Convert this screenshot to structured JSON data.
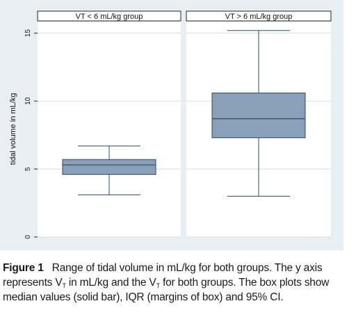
{
  "chart_data": {
    "type": "box",
    "ylabel": "tidal volume in mL/kg",
    "ylim": [
      0,
      15.8
    ],
    "yticks": [
      0,
      5,
      10,
      15
    ],
    "grid": true,
    "colors": {
      "box_fill": "#8aa0b8",
      "box_stroke": "#2f4a63",
      "grid": "#d8dde2",
      "panel_bg": "#e9eef3"
    },
    "panels": [
      {
        "title": "VT < 6 mL/kg group",
        "whisker_low": 3.1,
        "q1": 4.6,
        "median": 5.3,
        "q3": 5.7,
        "whisker_high": 6.7
      },
      {
        "title": "VT > 6 mL/kg group",
        "whisker_low": 3.0,
        "q1": 7.3,
        "median": 8.7,
        "q3": 10.6,
        "whisker_high": 15.2
      }
    ]
  },
  "caption": {
    "label": "Figure 1",
    "line1": "Range of tidal volume in mL/kg for both groups. The y axis",
    "line2_a": "represents V",
    "line2_sub1": "T",
    "line2_b": " in mL/kg and the V",
    "line2_sub2": "T",
    "line2_c": " for both groups. The box plots show",
    "line3": "median values (solid bar), IQR (margins of box) and 95% CI."
  }
}
